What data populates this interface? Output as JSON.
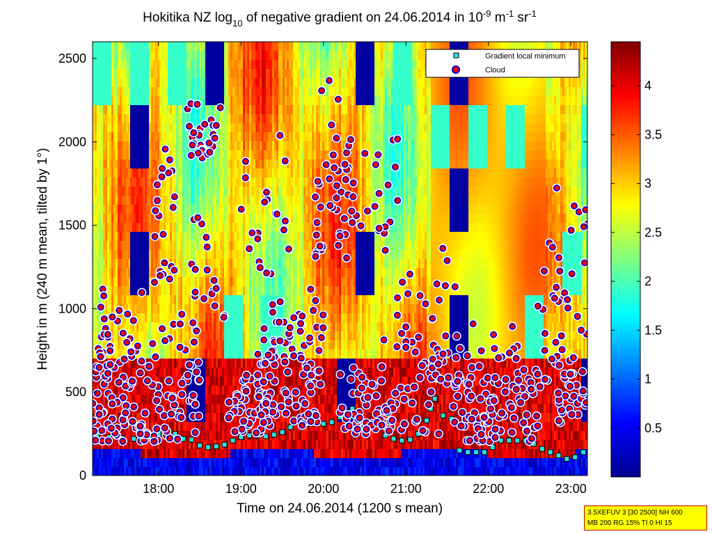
{
  "chart_data": {
    "type": "heatmap",
    "title": {
      "prefix": "Hokitika NZ log",
      "sub": "10",
      "mid": " of negative gradient on 24.06.2014 in 10",
      "sup1": "-9",
      "unit1": " m",
      "sup2": "-1",
      "unit2": " sr",
      "sup3": "-1"
    },
    "xlabel": "Time on 24.06.2014 (1200 s mean)",
    "ylabel": "Height in m (240 m mean, tilted by 1°)",
    "xlim_hours": [
      17.2,
      23.2
    ],
    "ylim": [
      0,
      2600
    ],
    "x_ticks": [
      {
        "value": 18,
        "label": "18:00"
      },
      {
        "value": 19,
        "label": "19:00"
      },
      {
        "value": 20,
        "label": "20:00"
      },
      {
        "value": 21,
        "label": "21:00"
      },
      {
        "value": 22,
        "label": "22:00"
      },
      {
        "value": 23,
        "label": "23:00"
      }
    ],
    "y_ticks": [
      {
        "value": 0,
        "label": "0"
      },
      {
        "value": 500,
        "label": "500"
      },
      {
        "value": 1000,
        "label": "1000"
      },
      {
        "value": 1500,
        "label": "1500"
      },
      {
        "value": 2000,
        "label": "2000"
      },
      {
        "value": 2500,
        "label": "2500"
      }
    ],
    "colorbar": {
      "range": [
        0,
        4.45
      ],
      "ticks": [
        {
          "value": 0.5,
          "label": "0.5"
        },
        {
          "value": 1,
          "label": "1"
        },
        {
          "value": 1.5,
          "label": "1.5"
        },
        {
          "value": 2,
          "label": "2"
        },
        {
          "value": 2.5,
          "label": "2.5"
        },
        {
          "value": 3,
          "label": "3"
        },
        {
          "value": 3.5,
          "label": "3.5"
        },
        {
          "value": 4,
          "label": "4"
        }
      ]
    },
    "legend": {
      "placement": "top-right",
      "entries": [
        "Gradient local minimum",
        "Cloud"
      ]
    },
    "gradient_local_minimum": [
      [
        17.25,
        240
      ],
      [
        17.4,
        230
      ],
      [
        17.55,
        225
      ],
      [
        17.7,
        220
      ],
      [
        17.85,
        230
      ],
      [
        18.0,
        250
      ],
      [
        18.1,
        270
      ],
      [
        18.2,
        250
      ],
      [
        18.3,
        220
      ],
      [
        18.4,
        215
      ],
      [
        18.5,
        180
      ],
      [
        18.6,
        170
      ],
      [
        18.7,
        175
      ],
      [
        18.8,
        185
      ],
      [
        18.9,
        210
      ],
      [
        19.0,
        230
      ],
      [
        19.1,
        240
      ],
      [
        19.2,
        240
      ],
      [
        19.3,
        235
      ],
      [
        19.4,
        245
      ],
      [
        19.5,
        260
      ],
      [
        19.6,
        290
      ],
      [
        19.7,
        330
      ],
      [
        19.8,
        310
      ],
      [
        19.9,
        310
      ],
      [
        20.0,
        310
      ],
      [
        20.1,
        320
      ],
      [
        20.2,
        350
      ],
      [
        20.3,
        380
      ],
      [
        20.35,
        400
      ],
      [
        20.45,
        370
      ],
      [
        20.55,
        320
      ],
      [
        20.65,
        280
      ],
      [
        20.75,
        240
      ],
      [
        20.85,
        220
      ],
      [
        20.95,
        210
      ],
      [
        21.05,
        215
      ],
      [
        21.15,
        250
      ],
      [
        21.25,
        330
      ],
      [
        21.3,
        400
      ],
      [
        21.35,
        460
      ],
      [
        21.45,
        360
      ],
      [
        21.55,
        340
      ],
      [
        21.65,
        150
      ],
      [
        21.75,
        140
      ],
      [
        21.85,
        140
      ],
      [
        21.95,
        140
      ],
      [
        22.05,
        170
      ],
      [
        22.15,
        210
      ],
      [
        22.25,
        210
      ],
      [
        22.35,
        210
      ],
      [
        22.45,
        210
      ],
      [
        22.55,
        190
      ],
      [
        22.65,
        160
      ],
      [
        22.75,
        140
      ],
      [
        22.85,
        120
      ],
      [
        22.95,
        100
      ],
      [
        23.05,
        110
      ],
      [
        23.15,
        140
      ]
    ],
    "cloud_clusters": [
      {
        "x": [
          17.2,
          18.5
        ],
        "y": [
          200,
          1100
        ],
        "n": 140
      },
      {
        "x": [
          17.25,
          17.45
        ],
        "y": [
          600,
          1200
        ],
        "n": 20
      },
      {
        "x": [
          17.95,
          18.2
        ],
        "y": [
          1150,
          2150
        ],
        "n": 22
      },
      {
        "x": [
          18.35,
          18.75
        ],
        "y": [
          1900,
          2250
        ],
        "n": 32
      },
      {
        "x": [
          18.4,
          18.8
        ],
        "y": [
          900,
          1800
        ],
        "n": 18
      },
      {
        "x": [
          18.85,
          19.3
        ],
        "y": [
          250,
          700
        ],
        "n": 40
      },
      {
        "x": [
          19.0,
          19.6
        ],
        "y": [
          1200,
          2150
        ],
        "n": 22
      },
      {
        "x": [
          19.2,
          20.0
        ],
        "y": [
          300,
          1200
        ],
        "n": 110
      },
      {
        "x": [
          19.9,
          20.3
        ],
        "y": [
          1300,
          2400
        ],
        "n": 40
      },
      {
        "x": [
          20.2,
          20.8
        ],
        "y": [
          250,
          700
        ],
        "n": 45
      },
      {
        "x": [
          20.3,
          20.9
        ],
        "y": [
          1400,
          2300
        ],
        "n": 24
      },
      {
        "x": [
          20.7,
          21.4
        ],
        "y": [
          250,
          1400
        ],
        "n": 55
      },
      {
        "x": [
          21.3,
          21.6
        ],
        "y": [
          500,
          1400
        ],
        "n": 20
      },
      {
        "x": [
          21.55,
          22.6
        ],
        "y": [
          200,
          1000
        ],
        "n": 110
      },
      {
        "x": [
          22.6,
          23.2
        ],
        "y": [
          300,
          1900
        ],
        "n": 70
      }
    ]
  },
  "info_box": {
    "line1": "3.5XEFUV 3 [30 2500] NH 600",
    "line2": "MB 200 RG 15% TI 0 HI 15"
  },
  "colors": {
    "min_marker_fill": "#33dddd",
    "cloud_fill": "#ee0000",
    "cloud_ring": "#ffffff",
    "cloud_edge": "#0000cc"
  }
}
